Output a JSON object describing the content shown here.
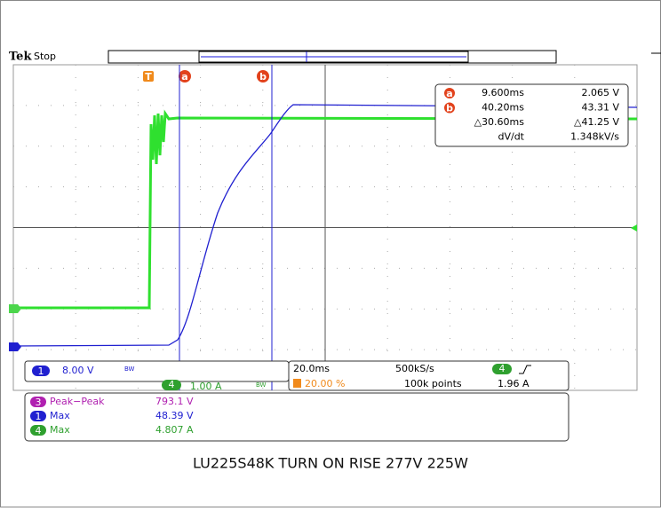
{
  "header": {
    "brand": "Tek",
    "status": "Stop"
  },
  "markers": {
    "trigger": "T",
    "a": "a",
    "b": "b"
  },
  "readout": {
    "rows": [
      [
        "a",
        "9.600ms",
        "2.065 V"
      ],
      [
        "b",
        "40.20ms",
        "43.31 V"
      ],
      [
        "",
        "△30.60ms",
        "△41.25 V"
      ],
      [
        "",
        "dV/dt",
        "1.348kV/s"
      ]
    ]
  },
  "channels": {
    "ch1": {
      "number": "1",
      "scale": "8.00 V",
      "bw": "BW"
    },
    "ch4": {
      "number": "4",
      "scale": "1.00 A",
      "bw": "BW"
    }
  },
  "timebase": {
    "scale": "20.0ms",
    "position": "20.00 %",
    "rate": "500kS/s",
    "points": "100k points",
    "trigger_channel": "4",
    "trigger_level": "1.96 A"
  },
  "measurements": [
    {
      "channel": "3",
      "name": "Peak−Peak",
      "value": "793.1 V"
    },
    {
      "channel": "1",
      "name": "Max",
      "value": "48.39 V"
    },
    {
      "channel": "4",
      "name": "Max",
      "value": "4.807 A"
    }
  ],
  "caption": "LU225S48K TURN ON RISE 277V 225W"
}
